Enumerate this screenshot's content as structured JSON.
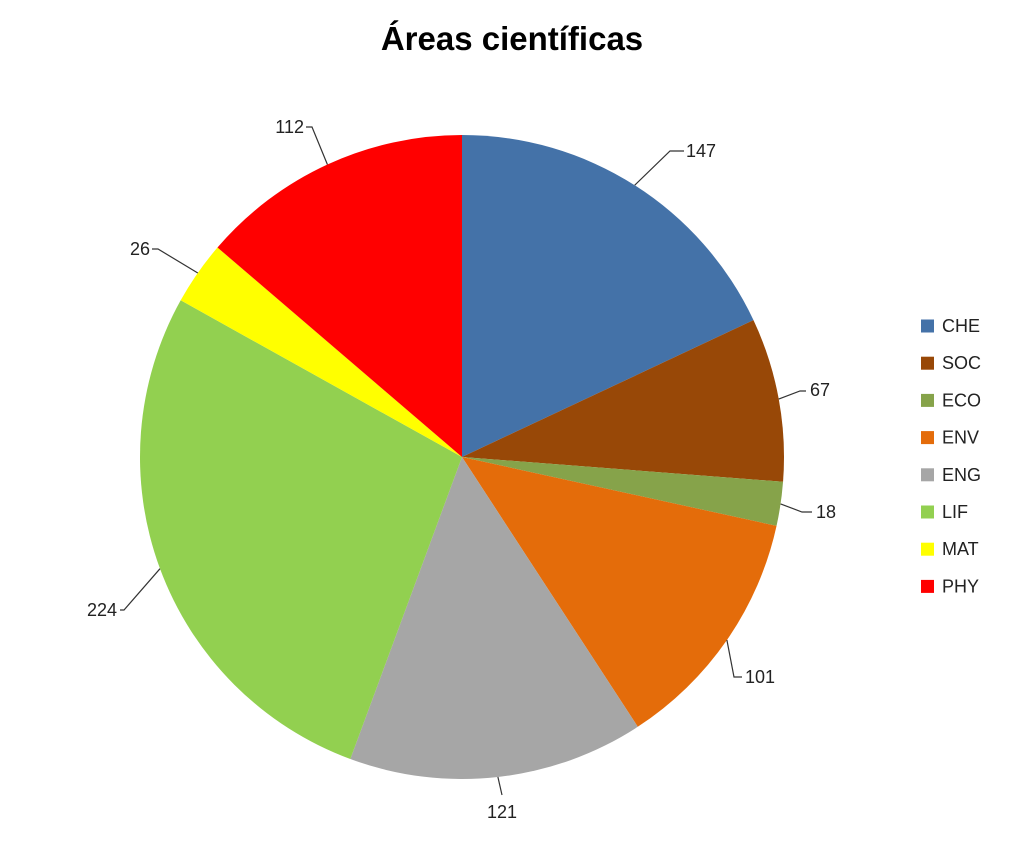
{
  "chart_data": {
    "type": "pie",
    "title": "Áreas científicas",
    "categories": [
      "CHE",
      "SOC",
      "ECO",
      "ENV",
      "ENG",
      "LIF",
      "MAT",
      "PHY"
    ],
    "values": [
      147,
      67,
      18,
      101,
      121,
      224,
      26,
      112
    ],
    "colors": [
      "#4472A8",
      "#984807",
      "#86A34A",
      "#E46C0A",
      "#A6A6A6",
      "#92D050",
      "#FFFF00",
      "#FF0000"
    ],
    "start_angle": "12 o'clock",
    "direction": "clockwise",
    "legend_position": "right"
  }
}
